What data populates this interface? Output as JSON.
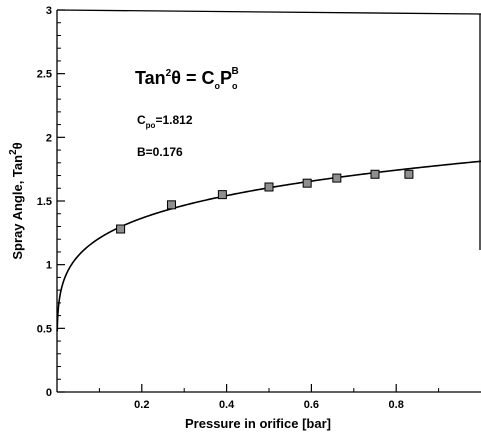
{
  "chart_data": {
    "type": "scatter",
    "xlabel": "Pressure in orifice [bar]",
    "ylabel": "Spray Angle, Tan",
    "ylabel_sup": "2",
    "ylabel_theta": "θ",
    "xlim": [
      0,
      1.0
    ],
    "ylim": [
      0,
      3
    ],
    "x_ticks": [
      0.2,
      0.4,
      0.6,
      0.8
    ],
    "x_tick_labels": [
      "0.2",
      "0.4",
      "0.6",
      "0.8"
    ],
    "y_ticks": [
      0,
      0.5,
      1,
      1.5,
      2,
      2.5,
      3
    ],
    "y_tick_labels": [
      "0",
      "0.5",
      "1",
      "1.5",
      "2",
      "2.5",
      "3"
    ],
    "grid": false,
    "equation": {
      "lhs": "Tan",
      "lhs_sup": "2",
      "theta": "θ = C",
      "c_sub": "o",
      "p": "P",
      "p_sub": "o",
      "p_sup": "B"
    },
    "params": {
      "c_label": "C",
      "c_sub": "po",
      "c_value": "=1.812",
      "b_label": "B=0.176"
    },
    "fit": {
      "C": 1.812,
      "B": 0.176
    },
    "series": [
      {
        "marker": "square",
        "x": [
          0.15,
          0.27,
          0.39,
          0.5,
          0.59,
          0.66,
          0.75,
          0.83
        ],
        "y": [
          1.28,
          1.47,
          1.55,
          1.61,
          1.64,
          1.68,
          1.71,
          1.71
        ]
      }
    ],
    "colors": {
      "marker_fill": "#8f8f8f",
      "line": "#000000"
    }
  }
}
